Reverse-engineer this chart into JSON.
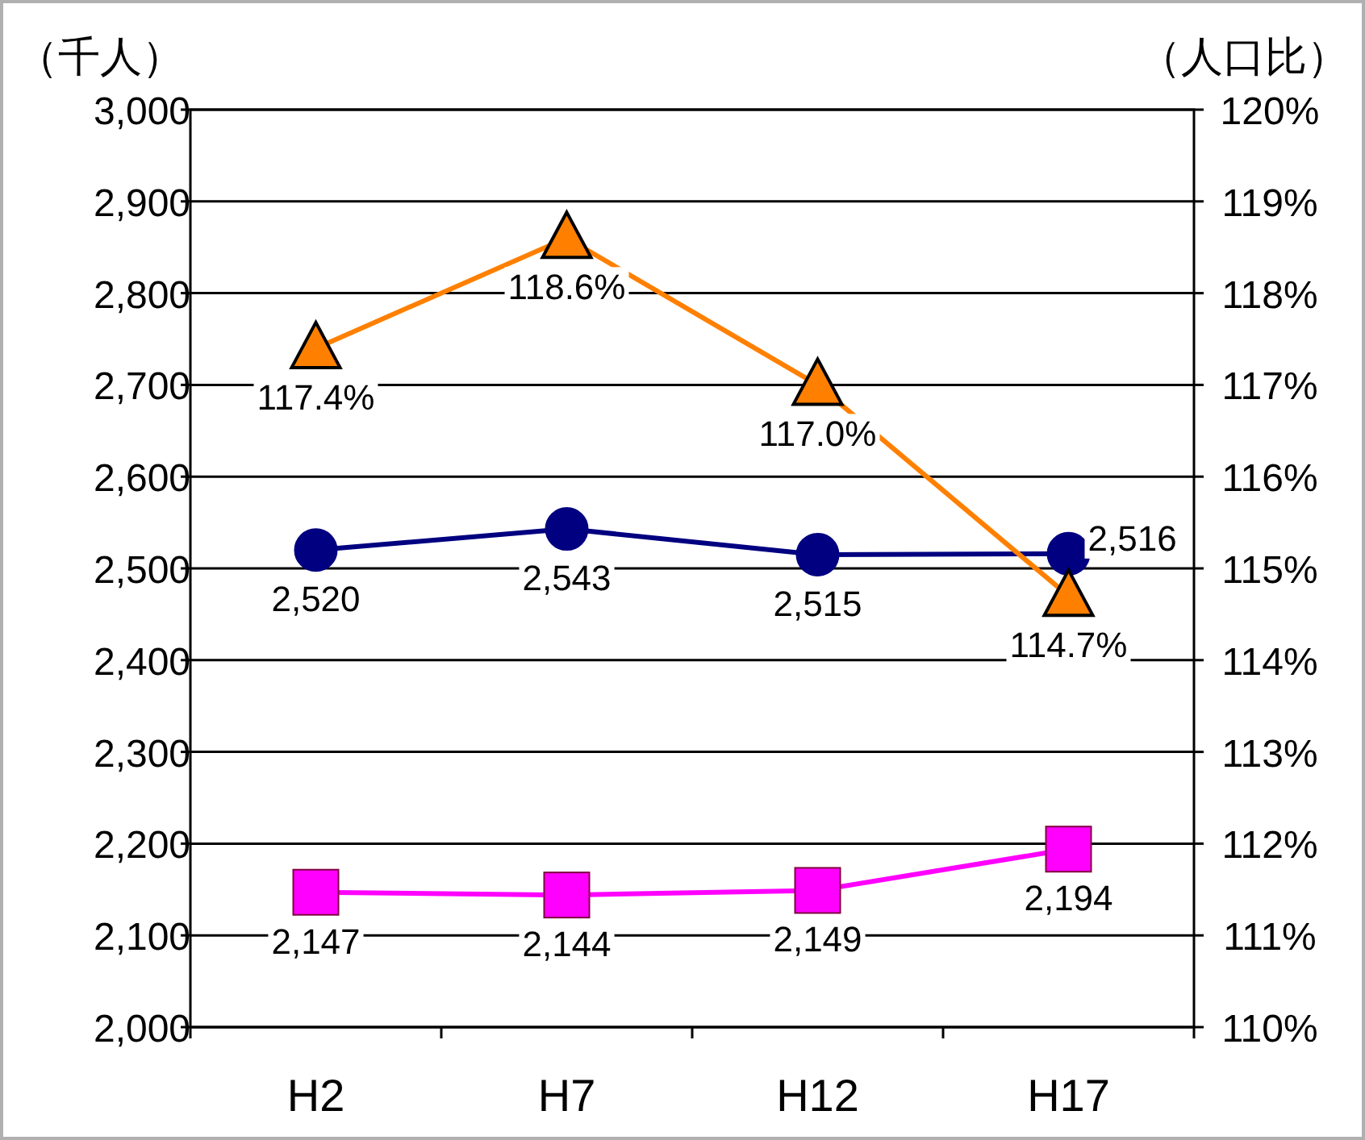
{
  "chart_data": {
    "type": "line",
    "ylabel": "（千人）",
    "y2label": "（人口比）",
    "categories": [
      "H2",
      "H7",
      "H12",
      "H17"
    ],
    "ylim": [
      2000,
      3000
    ],
    "yticks": [
      {
        "value": 2000,
        "label": "2,000"
      },
      {
        "value": 2100,
        "label": "2,100"
      },
      {
        "value": 2200,
        "label": "2,200"
      },
      {
        "value": 2300,
        "label": "2,300"
      },
      {
        "value": 2400,
        "label": "2,400"
      },
      {
        "value": 2500,
        "label": "2,500"
      },
      {
        "value": 2600,
        "label": "2,600"
      },
      {
        "value": 2700,
        "label": "2,700"
      },
      {
        "value": 2800,
        "label": "2,800"
      },
      {
        "value": 2900,
        "label": "2,900"
      },
      {
        "value": 3000,
        "label": "3,000"
      }
    ],
    "y2lim": [
      110,
      120
    ],
    "y2ticks": [
      {
        "value": 110,
        "label": "110%"
      },
      {
        "value": 111,
        "label": "111%"
      },
      {
        "value": 112,
        "label": "112%"
      },
      {
        "value": 113,
        "label": "113%"
      },
      {
        "value": 114,
        "label": "114%"
      },
      {
        "value": 115,
        "label": "115%"
      },
      {
        "value": 116,
        "label": "116%"
      },
      {
        "value": 117,
        "label": "117%"
      },
      {
        "value": 118,
        "label": "118%"
      },
      {
        "value": 119,
        "label": "119%"
      },
      {
        "value": 120,
        "label": "120%"
      }
    ],
    "grid": "y",
    "series": [
      {
        "color": "#000080",
        "marker": "circle",
        "values": [
          2520,
          2543,
          2515,
          2516
        ],
        "value_labels": [
          "2,520",
          "2,543",
          "2,515",
          "2,516"
        ]
      },
      {
        "color": "#ff00ff",
        "marker": "square",
        "values": [
          2147,
          2144,
          2149,
          2194
        ],
        "value_labels": [
          "2,147",
          "2,144",
          "2,149",
          "2,194"
        ]
      },
      {
        "color": "#ff8000",
        "marker": "triangle",
        "axis": "y2",
        "values": [
          117.4,
          118.6,
          117.0,
          114.7
        ],
        "value_labels": [
          "117.4%",
          "118.6%",
          "117.0%",
          "114.7%"
        ]
      }
    ]
  }
}
